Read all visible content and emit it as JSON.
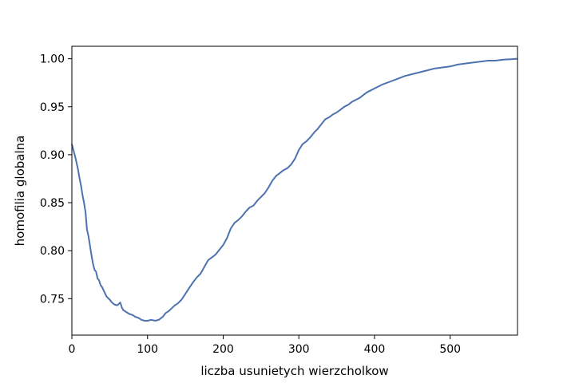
{
  "chart_data": {
    "type": "line",
    "title": "",
    "xlabel": "liczba usunietych wierzcholkow",
    "ylabel": "homofilia globalna",
    "xlim": [
      0,
      589
    ],
    "ylim": [
      0.712,
      1.013
    ],
    "xticks": [
      0,
      100,
      200,
      300,
      400,
      500
    ],
    "xtick_labels": [
      "0",
      "100",
      "200",
      "300",
      "400",
      "500"
    ],
    "yticks": [
      0.75,
      0.8,
      0.85,
      0.9,
      0.95,
      1.0
    ],
    "ytick_labels": [
      "0.75",
      "0.80",
      "0.85",
      "0.90",
      "0.95",
      "1.00"
    ],
    "grid": false,
    "line_color": "#4c72b0",
    "series": [
      {
        "x": [
          0,
          2,
          5,
          8,
          10,
          12,
          14,
          16,
          18,
          20,
          22,
          24,
          26,
          28,
          30,
          32,
          34,
          36,
          38,
          40,
          43,
          46,
          50,
          53,
          56,
          60,
          64,
          66,
          68,
          70,
          72,
          76,
          80,
          84,
          88,
          92,
          96,
          100,
          105,
          110,
          115,
          120,
          124,
          128,
          132,
          136,
          140,
          145,
          150,
          155,
          160,
          165,
          170,
          175,
          180,
          185,
          190,
          195,
          200,
          205,
          210,
          215,
          220,
          225,
          230,
          235,
          240,
          245,
          250,
          255,
          260,
          265,
          270,
          275,
          280,
          285,
          290,
          295,
          300,
          305,
          310,
          315,
          320,
          325,
          330,
          335,
          340,
          345,
          350,
          355,
          360,
          365,
          370,
          375,
          380,
          385,
          390,
          395,
          400,
          410,
          420,
          430,
          440,
          450,
          460,
          470,
          480,
          490,
          500,
          510,
          520,
          530,
          540,
          550,
          560,
          570,
          580,
          589
        ],
        "y": [
          0.911,
          0.905,
          0.896,
          0.885,
          0.876,
          0.868,
          0.858,
          0.85,
          0.84,
          0.822,
          0.815,
          0.805,
          0.795,
          0.786,
          0.78,
          0.778,
          0.771,
          0.769,
          0.764,
          0.762,
          0.757,
          0.752,
          0.749,
          0.746,
          0.744,
          0.743,
          0.746,
          0.741,
          0.738,
          0.737,
          0.736,
          0.734,
          0.733,
          0.731,
          0.73,
          0.728,
          0.727,
          0.727,
          0.728,
          0.727,
          0.728,
          0.731,
          0.735,
          0.737,
          0.74,
          0.743,
          0.745,
          0.749,
          0.755,
          0.761,
          0.767,
          0.772,
          0.776,
          0.783,
          0.79,
          0.793,
          0.796,
          0.801,
          0.806,
          0.813,
          0.823,
          0.829,
          0.832,
          0.836,
          0.841,
          0.845,
          0.847,
          0.852,
          0.856,
          0.86,
          0.866,
          0.873,
          0.878,
          0.881,
          0.884,
          0.886,
          0.89,
          0.896,
          0.905,
          0.911,
          0.914,
          0.918,
          0.923,
          0.927,
          0.932,
          0.937,
          0.939,
          0.942,
          0.944,
          0.947,
          0.95,
          0.952,
          0.955,
          0.957,
          0.959,
          0.962,
          0.965,
          0.967,
          0.969,
          0.973,
          0.976,
          0.979,
          0.982,
          0.984,
          0.986,
          0.988,
          0.99,
          0.991,
          0.992,
          0.994,
          0.995,
          0.996,
          0.997,
          0.998,
          0.998,
          0.999,
          0.9995,
          1.0
        ]
      }
    ]
  }
}
